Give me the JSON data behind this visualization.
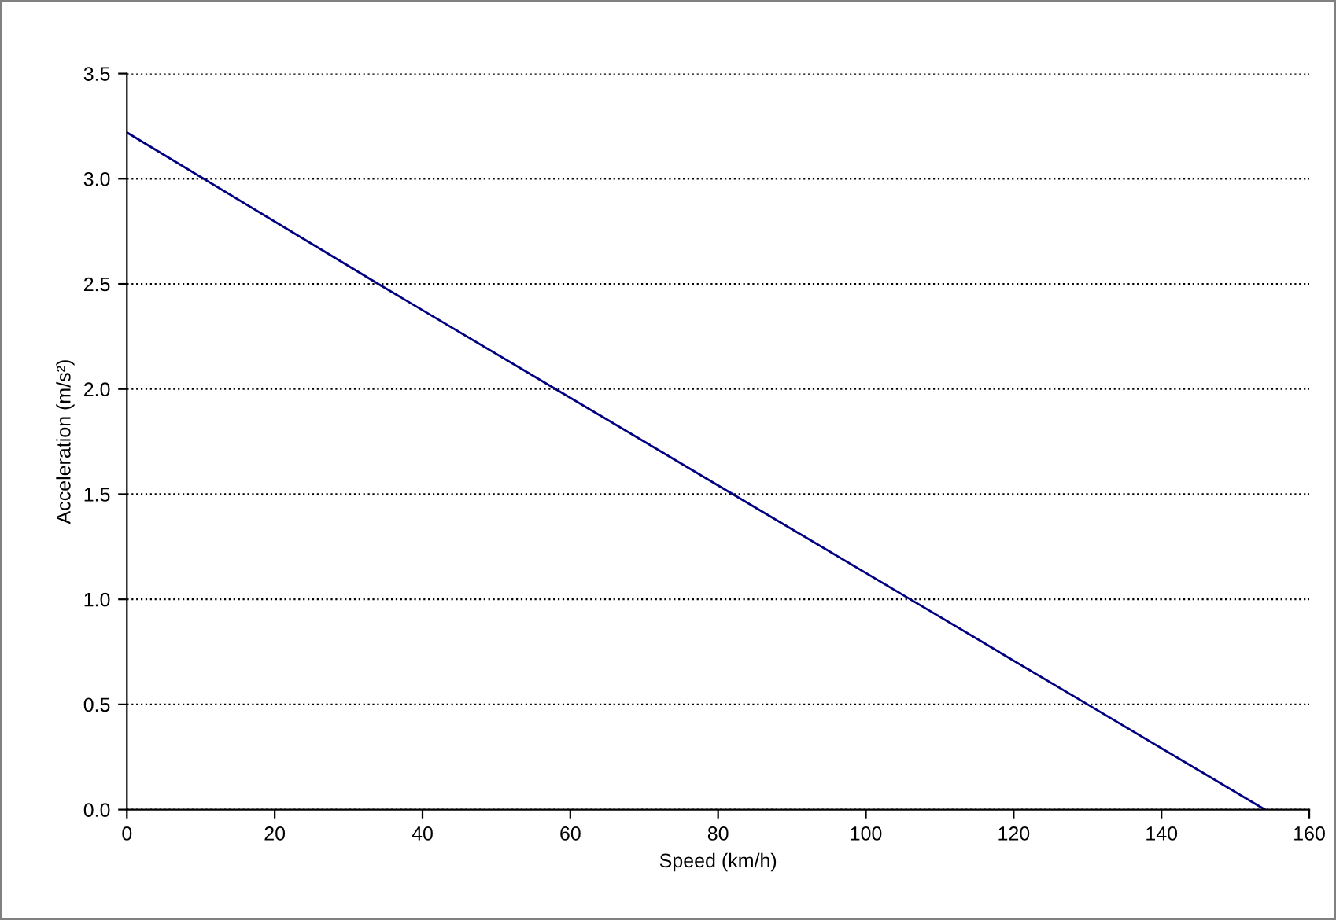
{
  "chart_data": {
    "type": "line",
    "xlabel": "Speed (km/h)",
    "ylabel": "Acceleration (m/s²)",
    "x": [
      0,
      34,
      58,
      82,
      106,
      130,
      154
    ],
    "series": [
      {
        "color": "#000080",
        "values": [
          3.22,
          2.5,
          2.0,
          1.5,
          1.0,
          0.5,
          0.0
        ]
      }
    ],
    "xlim": [
      0,
      160
    ],
    "xticks": [
      0,
      20,
      40,
      60,
      80,
      100,
      120,
      140,
      160
    ],
    "ylim": [
      0,
      3.5
    ],
    "yticks": [
      {
        "value": 0,
        "label": "0.0"
      },
      {
        "value": 0.5,
        "label": "0.5"
      },
      {
        "value": 1,
        "label": "1.0"
      },
      {
        "value": 1.5,
        "label": "1.5"
      },
      {
        "value": 2,
        "label": "2.0"
      },
      {
        "value": 2.5,
        "label": "2.5"
      },
      {
        "value": 3,
        "label": "3.0"
      },
      {
        "value": 3.5,
        "label": "3.5"
      }
    ],
    "grid": "y",
    "marker": "none",
    "line_style": "solid"
  }
}
